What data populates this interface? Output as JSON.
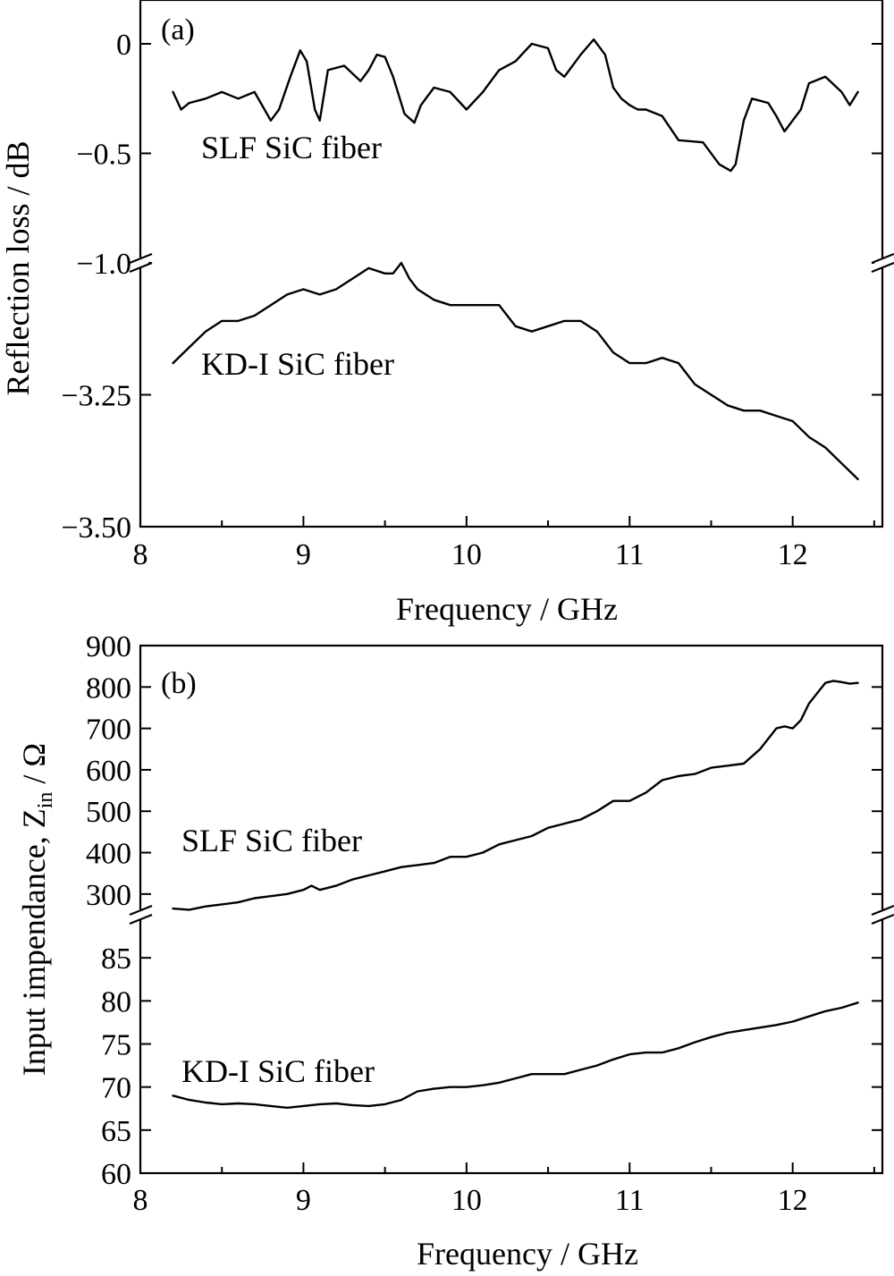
{
  "chart_data": [
    {
      "panel_label": "(a)",
      "type": "line",
      "xlabel": "Frequency / GHz",
      "ylabel": "Reflection loss / dB",
      "x_ticks": [
        "8",
        "9",
        "10",
        "11",
        "12"
      ],
      "xlim": [
        8,
        12.55
      ],
      "broken_y_axis": true,
      "upper_segment": {
        "ylim": [
          -1.0,
          0.2
        ],
        "y_ticks": [
          "0",
          "−0.5",
          "−1.0"
        ],
        "tick_values": [
          0,
          -0.5,
          -1.0
        ]
      },
      "lower_segment": {
        "ylim": [
          -3.5,
          -3.0
        ],
        "y_ticks": [
          "−3.25",
          "−3.50"
        ],
        "tick_values": [
          -3.25,
          -3.5
        ]
      },
      "series": [
        {
          "name": "SLF SiC fiber",
          "segment": "upper",
          "x": [
            8.2,
            8.25,
            8.3,
            8.4,
            8.5,
            8.6,
            8.7,
            8.8,
            8.85,
            8.92,
            8.98,
            9.02,
            9.07,
            9.1,
            9.15,
            9.25,
            9.35,
            9.4,
            9.45,
            9.5,
            9.55,
            9.62,
            9.68,
            9.72,
            9.8,
            9.9,
            10.0,
            10.1,
            10.2,
            10.3,
            10.4,
            10.5,
            10.55,
            10.6,
            10.7,
            10.78,
            10.85,
            10.9,
            10.95,
            11.0,
            11.05,
            11.1,
            11.2,
            11.3,
            11.45,
            11.55,
            11.62,
            11.65,
            11.7,
            11.75,
            11.8,
            11.85,
            11.9,
            11.95,
            12.05,
            12.1,
            12.2,
            12.3,
            12.35,
            12.4
          ],
          "y": [
            -0.22,
            -0.3,
            -0.27,
            -0.25,
            -0.22,
            -0.25,
            -0.22,
            -0.35,
            -0.3,
            -0.15,
            -0.03,
            -0.08,
            -0.3,
            -0.35,
            -0.12,
            -0.1,
            -0.17,
            -0.12,
            -0.05,
            -0.06,
            -0.15,
            -0.32,
            -0.36,
            -0.28,
            -0.2,
            -0.22,
            -0.3,
            -0.22,
            -0.12,
            -0.08,
            0.0,
            -0.02,
            -0.12,
            -0.15,
            -0.05,
            0.02,
            -0.05,
            -0.2,
            -0.25,
            -0.28,
            -0.3,
            -0.3,
            -0.33,
            -0.44,
            -0.45,
            -0.55,
            -0.58,
            -0.55,
            -0.35,
            -0.25,
            -0.26,
            -0.27,
            -0.33,
            -0.4,
            -0.3,
            -0.18,
            -0.15,
            -0.22,
            -0.28,
            -0.22
          ]
        },
        {
          "name": "KD-I SiC fiber",
          "segment": "lower",
          "x": [
            8.2,
            8.3,
            8.4,
            8.5,
            8.6,
            8.7,
            8.8,
            8.9,
            9.0,
            9.1,
            9.2,
            9.3,
            9.4,
            9.5,
            9.55,
            9.6,
            9.65,
            9.7,
            9.8,
            9.9,
            10.0,
            10.1,
            10.2,
            10.25,
            10.3,
            10.4,
            10.5,
            10.6,
            10.7,
            10.8,
            10.9,
            11.0,
            11.1,
            11.2,
            11.3,
            11.4,
            11.5,
            11.6,
            11.7,
            11.8,
            11.9,
            12.0,
            12.1,
            12.2,
            12.3,
            12.4
          ],
          "y": [
            -3.19,
            -3.16,
            -3.13,
            -3.11,
            -3.11,
            -3.1,
            -3.08,
            -3.06,
            -3.05,
            -3.06,
            -3.05,
            -3.03,
            -3.01,
            -3.02,
            -3.02,
            -3.0,
            -3.03,
            -3.05,
            -3.07,
            -3.08,
            -3.08,
            -3.08,
            -3.08,
            -3.1,
            -3.12,
            -3.13,
            -3.12,
            -3.11,
            -3.11,
            -3.13,
            -3.17,
            -3.19,
            -3.19,
            -3.18,
            -3.19,
            -3.23,
            -3.25,
            -3.27,
            -3.28,
            -3.28,
            -3.29,
            -3.3,
            -3.33,
            -3.35,
            -3.38,
            -3.41
          ]
        }
      ]
    },
    {
      "panel_label": "(b)",
      "type": "line",
      "xlabel": "Frequency / GHz",
      "ylabel_main": "Input impendance, Z",
      "ylabel_subscript": "in",
      "ylabel_unit": " / Ω",
      "x_ticks": [
        "8",
        "9",
        "10",
        "11",
        "12"
      ],
      "xlim": [
        8,
        12.55
      ],
      "broken_y_axis": true,
      "upper_segment": {
        "ylim": [
          250,
          900
        ],
        "y_ticks": [
          "900",
          "800",
          "700",
          "600",
          "500",
          "400",
          "300"
        ],
        "tick_values": [
          900,
          800,
          700,
          600,
          500,
          400,
          300
        ]
      },
      "lower_segment": {
        "ylim": [
          60,
          90
        ],
        "y_ticks": [
          "85",
          "80",
          "75",
          "70",
          "65",
          "60"
        ],
        "tick_values": [
          85,
          80,
          75,
          70,
          65,
          60
        ]
      },
      "series": [
        {
          "name": "SLF SiC fiber",
          "segment": "upper",
          "x": [
            8.2,
            8.3,
            8.4,
            8.5,
            8.6,
            8.7,
            8.8,
            8.9,
            9.0,
            9.05,
            9.1,
            9.2,
            9.3,
            9.4,
            9.5,
            9.6,
            9.7,
            9.8,
            9.9,
            10.0,
            10.1,
            10.2,
            10.3,
            10.4,
            10.5,
            10.6,
            10.7,
            10.8,
            10.9,
            11.0,
            11.1,
            11.2,
            11.3,
            11.4,
            11.5,
            11.6,
            11.7,
            11.8,
            11.9,
            11.95,
            12.0,
            12.05,
            12.1,
            12.2,
            12.25,
            12.3,
            12.35,
            12.4
          ],
          "y": [
            265,
            262,
            270,
            275,
            280,
            290,
            295,
            300,
            310,
            320,
            310,
            320,
            335,
            345,
            355,
            365,
            370,
            375,
            390,
            390,
            400,
            420,
            430,
            440,
            460,
            470,
            480,
            500,
            525,
            525,
            545,
            575,
            585,
            590,
            605,
            610,
            615,
            650,
            700,
            705,
            700,
            720,
            760,
            810,
            815,
            812,
            808,
            810
          ]
        },
        {
          "name": "KD-I SiC fiber",
          "segment": "lower",
          "x": [
            8.2,
            8.3,
            8.4,
            8.5,
            8.6,
            8.7,
            8.8,
            8.9,
            9.0,
            9.1,
            9.2,
            9.3,
            9.4,
            9.5,
            9.6,
            9.7,
            9.8,
            9.9,
            10.0,
            10.1,
            10.2,
            10.3,
            10.4,
            10.5,
            10.6,
            10.7,
            10.8,
            10.9,
            11.0,
            11.1,
            11.2,
            11.3,
            11.4,
            11.5,
            11.6,
            11.7,
            11.8,
            11.9,
            12.0,
            12.1,
            12.2,
            12.3,
            12.4
          ],
          "y": [
            69.0,
            68.5,
            68.2,
            68.0,
            68.1,
            68.0,
            67.8,
            67.6,
            67.8,
            68.0,
            68.1,
            67.9,
            67.8,
            68.0,
            68.5,
            69.5,
            69.8,
            70.0,
            70.0,
            70.2,
            70.5,
            71.0,
            71.5,
            71.5,
            71.5,
            72.0,
            72.5,
            73.2,
            73.8,
            74.0,
            74.0,
            74.5,
            75.2,
            75.8,
            76.3,
            76.6,
            76.9,
            77.2,
            77.6,
            78.2,
            78.8,
            79.2,
            79.8
          ]
        }
      ]
    }
  ]
}
